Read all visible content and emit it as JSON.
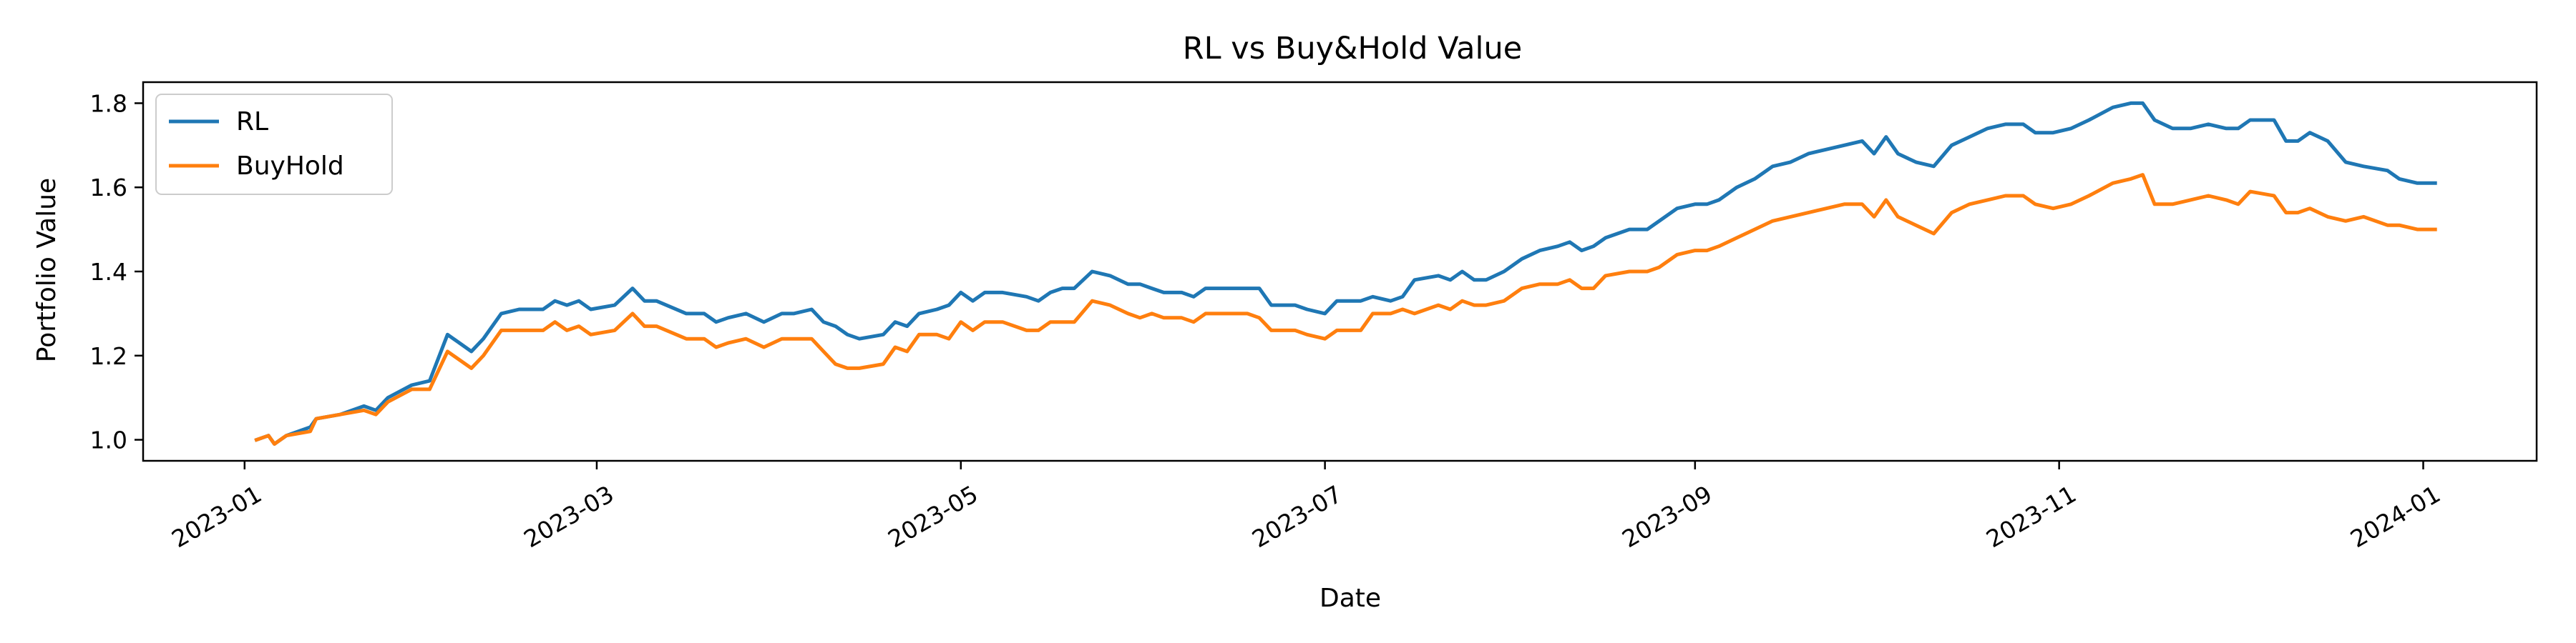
{
  "chart_data": {
    "type": "line",
    "title": "RL vs Buy&Hold Value",
    "xlabel": "Date",
    "ylabel": "Portfolio Value",
    "xlim": [
      "2022-12-15",
      "2024-01-20"
    ],
    "ylim": [
      0.95,
      1.85
    ],
    "x_ticks": [
      "2023-01",
      "2023-03",
      "2023-05",
      "2023-07",
      "2023-09",
      "2023-11",
      "2024-01"
    ],
    "y_ticks": [
      "1.0",
      "1.2",
      "1.4",
      "1.6",
      "1.8"
    ],
    "grid": false,
    "legend": "upper left",
    "series": [
      {
        "name": "RL",
        "color": "#1f77b4",
        "points": [
          [
            "2023-01-03",
            1.0
          ],
          [
            "2023-01-05",
            1.01
          ],
          [
            "2023-01-06",
            0.99
          ],
          [
            "2023-01-08",
            1.01
          ],
          [
            "2023-01-12",
            1.03
          ],
          [
            "2023-01-13",
            1.05
          ],
          [
            "2023-01-17",
            1.06
          ],
          [
            "2023-01-21",
            1.08
          ],
          [
            "2023-01-23",
            1.07
          ],
          [
            "2023-01-25",
            1.1
          ],
          [
            "2023-01-29",
            1.13
          ],
          [
            "2023-02-01",
            1.14
          ],
          [
            "2023-02-04",
            1.25
          ],
          [
            "2023-02-06",
            1.23
          ],
          [
            "2023-02-08",
            1.21
          ],
          [
            "2023-02-10",
            1.24
          ],
          [
            "2023-02-13",
            1.3
          ],
          [
            "2023-02-16",
            1.31
          ],
          [
            "2023-02-20",
            1.31
          ],
          [
            "2023-02-22",
            1.33
          ],
          [
            "2023-02-24",
            1.32
          ],
          [
            "2023-02-26",
            1.33
          ],
          [
            "2023-02-28",
            1.31
          ],
          [
            "2023-03-04",
            1.32
          ],
          [
            "2023-03-07",
            1.36
          ],
          [
            "2023-03-09",
            1.33
          ],
          [
            "2023-03-11",
            1.33
          ],
          [
            "2023-03-16",
            1.3
          ],
          [
            "2023-03-19",
            1.3
          ],
          [
            "2023-03-21",
            1.28
          ],
          [
            "2023-03-23",
            1.29
          ],
          [
            "2023-03-26",
            1.3
          ],
          [
            "2023-03-29",
            1.28
          ],
          [
            "2023-04-01",
            1.3
          ],
          [
            "2023-04-03",
            1.3
          ],
          [
            "2023-04-06",
            1.31
          ],
          [
            "2023-04-08",
            1.28
          ],
          [
            "2023-04-10",
            1.27
          ],
          [
            "2023-04-12",
            1.25
          ],
          [
            "2023-04-14",
            1.24
          ],
          [
            "2023-04-18",
            1.25
          ],
          [
            "2023-04-20",
            1.28
          ],
          [
            "2023-04-22",
            1.27
          ],
          [
            "2023-04-24",
            1.3
          ],
          [
            "2023-04-27",
            1.31
          ],
          [
            "2023-04-29",
            1.32
          ],
          [
            "2023-05-01",
            1.35
          ],
          [
            "2023-05-03",
            1.33
          ],
          [
            "2023-05-05",
            1.35
          ],
          [
            "2023-05-08",
            1.35
          ],
          [
            "2023-05-12",
            1.34
          ],
          [
            "2023-05-14",
            1.33
          ],
          [
            "2023-05-16",
            1.35
          ],
          [
            "2023-05-18",
            1.36
          ],
          [
            "2023-05-20",
            1.36
          ],
          [
            "2023-05-23",
            1.4
          ],
          [
            "2023-05-26",
            1.39
          ],
          [
            "2023-05-29",
            1.37
          ],
          [
            "2023-05-31",
            1.37
          ],
          [
            "2023-06-02",
            1.36
          ],
          [
            "2023-06-04",
            1.35
          ],
          [
            "2023-06-07",
            1.35
          ],
          [
            "2023-06-09",
            1.34
          ],
          [
            "2023-06-11",
            1.36
          ],
          [
            "2023-06-15",
            1.36
          ],
          [
            "2023-06-18",
            1.36
          ],
          [
            "2023-06-20",
            1.36
          ],
          [
            "2023-06-22",
            1.32
          ],
          [
            "2023-06-26",
            1.32
          ],
          [
            "2023-06-28",
            1.31
          ],
          [
            "2023-07-01",
            1.3
          ],
          [
            "2023-07-03",
            1.33
          ],
          [
            "2023-07-07",
            1.33
          ],
          [
            "2023-07-09",
            1.34
          ],
          [
            "2023-07-12",
            1.33
          ],
          [
            "2023-07-14",
            1.34
          ],
          [
            "2023-07-16",
            1.38
          ],
          [
            "2023-07-20",
            1.39
          ],
          [
            "2023-07-22",
            1.38
          ],
          [
            "2023-07-24",
            1.4
          ],
          [
            "2023-07-26",
            1.38
          ],
          [
            "2023-07-28",
            1.38
          ],
          [
            "2023-07-31",
            1.4
          ],
          [
            "2023-08-03",
            1.43
          ],
          [
            "2023-08-06",
            1.45
          ],
          [
            "2023-08-09",
            1.46
          ],
          [
            "2023-08-11",
            1.47
          ],
          [
            "2023-08-13",
            1.45
          ],
          [
            "2023-08-15",
            1.46
          ],
          [
            "2023-08-17",
            1.48
          ],
          [
            "2023-08-21",
            1.5
          ],
          [
            "2023-08-24",
            1.5
          ],
          [
            "2023-08-26",
            1.52
          ],
          [
            "2023-08-29",
            1.55
          ],
          [
            "2023-09-01",
            1.56
          ],
          [
            "2023-09-03",
            1.56
          ],
          [
            "2023-09-05",
            1.57
          ],
          [
            "2023-09-08",
            1.6
          ],
          [
            "2023-09-11",
            1.62
          ],
          [
            "2023-09-14",
            1.65
          ],
          [
            "2023-09-17",
            1.66
          ],
          [
            "2023-09-20",
            1.68
          ],
          [
            "2023-09-23",
            1.69
          ],
          [
            "2023-09-26",
            1.7
          ],
          [
            "2023-09-29",
            1.71
          ],
          [
            "2023-10-01",
            1.68
          ],
          [
            "2023-10-03",
            1.72
          ],
          [
            "2023-10-05",
            1.68
          ],
          [
            "2023-10-08",
            1.66
          ],
          [
            "2023-10-11",
            1.65
          ],
          [
            "2023-10-14",
            1.7
          ],
          [
            "2023-10-17",
            1.72
          ],
          [
            "2023-10-20",
            1.74
          ],
          [
            "2023-10-23",
            1.75
          ],
          [
            "2023-10-26",
            1.75
          ],
          [
            "2023-10-28",
            1.73
          ],
          [
            "2023-10-31",
            1.73
          ],
          [
            "2023-11-03",
            1.74
          ],
          [
            "2023-11-06",
            1.76
          ],
          [
            "2023-11-10",
            1.79
          ],
          [
            "2023-11-13",
            1.8
          ],
          [
            "2023-11-15",
            1.8
          ],
          [
            "2023-11-17",
            1.76
          ],
          [
            "2023-11-20",
            1.74
          ],
          [
            "2023-11-23",
            1.74
          ],
          [
            "2023-11-26",
            1.75
          ],
          [
            "2023-11-29",
            1.74
          ],
          [
            "2023-12-01",
            1.74
          ],
          [
            "2023-12-03",
            1.76
          ],
          [
            "2023-12-07",
            1.76
          ],
          [
            "2023-12-09",
            1.71
          ],
          [
            "2023-12-11",
            1.71
          ],
          [
            "2023-12-13",
            1.73
          ],
          [
            "2023-12-16",
            1.71
          ],
          [
            "2023-12-19",
            1.66
          ],
          [
            "2023-12-22",
            1.65
          ],
          [
            "2023-12-26",
            1.64
          ],
          [
            "2023-12-28",
            1.62
          ],
          [
            "2023-12-31",
            1.61
          ],
          [
            "2024-01-03",
            1.61
          ]
        ]
      },
      {
        "name": "BuyHold",
        "color": "#ff7f0e",
        "points": [
          [
            "2023-01-03",
            1.0
          ],
          [
            "2023-01-05",
            1.01
          ],
          [
            "2023-01-06",
            0.99
          ],
          [
            "2023-01-08",
            1.01
          ],
          [
            "2023-01-12",
            1.02
          ],
          [
            "2023-01-13",
            1.05
          ],
          [
            "2023-01-17",
            1.06
          ],
          [
            "2023-01-21",
            1.07
          ],
          [
            "2023-01-23",
            1.06
          ],
          [
            "2023-01-25",
            1.09
          ],
          [
            "2023-01-29",
            1.12
          ],
          [
            "2023-02-01",
            1.12
          ],
          [
            "2023-02-04",
            1.21
          ],
          [
            "2023-02-06",
            1.19
          ],
          [
            "2023-02-08",
            1.17
          ],
          [
            "2023-02-10",
            1.2
          ],
          [
            "2023-02-13",
            1.26
          ],
          [
            "2023-02-16",
            1.26
          ],
          [
            "2023-02-20",
            1.26
          ],
          [
            "2023-02-22",
            1.28
          ],
          [
            "2023-02-24",
            1.26
          ],
          [
            "2023-02-26",
            1.27
          ],
          [
            "2023-02-28",
            1.25
          ],
          [
            "2023-03-04",
            1.26
          ],
          [
            "2023-03-07",
            1.3
          ],
          [
            "2023-03-09",
            1.27
          ],
          [
            "2023-03-11",
            1.27
          ],
          [
            "2023-03-16",
            1.24
          ],
          [
            "2023-03-19",
            1.24
          ],
          [
            "2023-03-21",
            1.22
          ],
          [
            "2023-03-23",
            1.23
          ],
          [
            "2023-03-26",
            1.24
          ],
          [
            "2023-03-29",
            1.22
          ],
          [
            "2023-04-01",
            1.24
          ],
          [
            "2023-04-03",
            1.24
          ],
          [
            "2023-04-06",
            1.24
          ],
          [
            "2023-04-08",
            1.21
          ],
          [
            "2023-04-10",
            1.18
          ],
          [
            "2023-04-12",
            1.17
          ],
          [
            "2023-04-14",
            1.17
          ],
          [
            "2023-04-18",
            1.18
          ],
          [
            "2023-04-20",
            1.22
          ],
          [
            "2023-04-22",
            1.21
          ],
          [
            "2023-04-24",
            1.25
          ],
          [
            "2023-04-27",
            1.25
          ],
          [
            "2023-04-29",
            1.24
          ],
          [
            "2023-05-01",
            1.28
          ],
          [
            "2023-05-03",
            1.26
          ],
          [
            "2023-05-05",
            1.28
          ],
          [
            "2023-05-08",
            1.28
          ],
          [
            "2023-05-12",
            1.26
          ],
          [
            "2023-05-14",
            1.26
          ],
          [
            "2023-05-16",
            1.28
          ],
          [
            "2023-05-18",
            1.28
          ],
          [
            "2023-05-20",
            1.28
          ],
          [
            "2023-05-23",
            1.33
          ],
          [
            "2023-05-26",
            1.32
          ],
          [
            "2023-05-29",
            1.3
          ],
          [
            "2023-05-31",
            1.29
          ],
          [
            "2023-06-02",
            1.3
          ],
          [
            "2023-06-04",
            1.29
          ],
          [
            "2023-06-07",
            1.29
          ],
          [
            "2023-06-09",
            1.28
          ],
          [
            "2023-06-11",
            1.3
          ],
          [
            "2023-06-15",
            1.3
          ],
          [
            "2023-06-18",
            1.3
          ],
          [
            "2023-06-20",
            1.29
          ],
          [
            "2023-06-22",
            1.26
          ],
          [
            "2023-06-26",
            1.26
          ],
          [
            "2023-06-28",
            1.25
          ],
          [
            "2023-07-01",
            1.24
          ],
          [
            "2023-07-03",
            1.26
          ],
          [
            "2023-07-07",
            1.26
          ],
          [
            "2023-07-09",
            1.3
          ],
          [
            "2023-07-12",
            1.3
          ],
          [
            "2023-07-14",
            1.31
          ],
          [
            "2023-07-16",
            1.3
          ],
          [
            "2023-07-20",
            1.32
          ],
          [
            "2023-07-22",
            1.31
          ],
          [
            "2023-07-24",
            1.33
          ],
          [
            "2023-07-26",
            1.32
          ],
          [
            "2023-07-28",
            1.32
          ],
          [
            "2023-07-31",
            1.33
          ],
          [
            "2023-08-03",
            1.36
          ],
          [
            "2023-08-06",
            1.37
          ],
          [
            "2023-08-09",
            1.37
          ],
          [
            "2023-08-11",
            1.38
          ],
          [
            "2023-08-13",
            1.36
          ],
          [
            "2023-08-15",
            1.36
          ],
          [
            "2023-08-17",
            1.39
          ],
          [
            "2023-08-21",
            1.4
          ],
          [
            "2023-08-24",
            1.4
          ],
          [
            "2023-08-26",
            1.41
          ],
          [
            "2023-08-29",
            1.44
          ],
          [
            "2023-09-01",
            1.45
          ],
          [
            "2023-09-03",
            1.45
          ],
          [
            "2023-09-05",
            1.46
          ],
          [
            "2023-09-08",
            1.48
          ],
          [
            "2023-09-11",
            1.5
          ],
          [
            "2023-09-14",
            1.52
          ],
          [
            "2023-09-17",
            1.53
          ],
          [
            "2023-09-20",
            1.54
          ],
          [
            "2023-09-23",
            1.55
          ],
          [
            "2023-09-26",
            1.56
          ],
          [
            "2023-09-29",
            1.56
          ],
          [
            "2023-10-01",
            1.53
          ],
          [
            "2023-10-03",
            1.57
          ],
          [
            "2023-10-05",
            1.53
          ],
          [
            "2023-10-08",
            1.51
          ],
          [
            "2023-10-11",
            1.49
          ],
          [
            "2023-10-14",
            1.54
          ],
          [
            "2023-10-17",
            1.56
          ],
          [
            "2023-10-20",
            1.57
          ],
          [
            "2023-10-23",
            1.58
          ],
          [
            "2023-10-26",
            1.58
          ],
          [
            "2023-10-28",
            1.56
          ],
          [
            "2023-10-31",
            1.55
          ],
          [
            "2023-11-03",
            1.56
          ],
          [
            "2023-11-06",
            1.58
          ],
          [
            "2023-11-10",
            1.61
          ],
          [
            "2023-11-13",
            1.62
          ],
          [
            "2023-11-15",
            1.63
          ],
          [
            "2023-11-17",
            1.56
          ],
          [
            "2023-11-20",
            1.56
          ],
          [
            "2023-11-23",
            1.57
          ],
          [
            "2023-11-26",
            1.58
          ],
          [
            "2023-11-29",
            1.57
          ],
          [
            "2023-12-01",
            1.56
          ],
          [
            "2023-12-03",
            1.59
          ],
          [
            "2023-12-07",
            1.58
          ],
          [
            "2023-12-09",
            1.54
          ],
          [
            "2023-12-11",
            1.54
          ],
          [
            "2023-12-13",
            1.55
          ],
          [
            "2023-12-16",
            1.53
          ],
          [
            "2023-12-19",
            1.52
          ],
          [
            "2023-12-22",
            1.53
          ],
          [
            "2023-12-26",
            1.51
          ],
          [
            "2023-12-28",
            1.51
          ],
          [
            "2023-12-31",
            1.5
          ],
          [
            "2024-01-03",
            1.5
          ]
        ]
      }
    ]
  }
}
